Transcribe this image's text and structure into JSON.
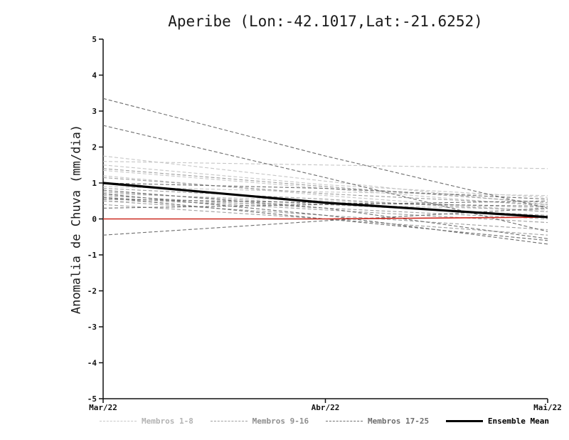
{
  "title": "Aperibe (Lon:-42.1017,Lat:-21.6252)",
  "chart_data": {
    "type": "line",
    "title": "Aperibe (Lon:-42.1017,Lat:-21.6252)",
    "xlabel": "",
    "ylabel": "Anomalia de Chuva (mm/dia)",
    "x_categories": [
      "Mar/22",
      "Abr/22",
      "Mai/22"
    ],
    "ylim": [
      -5,
      5
    ],
    "yticks": [
      -5,
      -4,
      -3,
      -2,
      -1,
      0,
      1,
      2,
      3,
      4,
      5
    ],
    "grid": false,
    "legend_position": "bottom",
    "groups": [
      {
        "name": "Membros 1-8",
        "color": "#c6c6c6",
        "style": "dashed",
        "members": [
          [
            1.75,
            1.05,
            0.4
          ],
          [
            1.6,
            1.5,
            1.4
          ],
          [
            1.5,
            0.95,
            0.6
          ],
          [
            1.35,
            0.85,
            0.35
          ],
          [
            1.2,
            0.65,
            0.2
          ],
          [
            0.9,
            0.75,
            0.65
          ],
          [
            0.7,
            0.5,
            0.3
          ],
          [
            0.5,
            0.4,
            0.25
          ]
        ]
      },
      {
        "name": "Membros 9-16",
        "color": "#9e9e9e",
        "style": "dashed",
        "members": [
          [
            1.4,
            0.9,
            0.45
          ],
          [
            1.15,
            0.7,
            0.4
          ],
          [
            0.85,
            0.55,
            0.2
          ],
          [
            0.75,
            0.4,
            0.1
          ],
          [
            0.65,
            0.3,
            0.0
          ],
          [
            0.6,
            0.25,
            -0.1
          ],
          [
            0.5,
            0.1,
            -0.3
          ],
          [
            0.4,
            0.0,
            -0.45
          ]
        ]
      },
      {
        "name": "Membros 17-25",
        "color": "#6e6e6e",
        "style": "dashed",
        "members": [
          [
            3.35,
            1.75,
            0.3
          ],
          [
            2.6,
            1.15,
            -0.35
          ],
          [
            1.0,
            0.85,
            0.55
          ],
          [
            0.8,
            0.3,
            -0.55
          ],
          [
            0.7,
            0.1,
            -0.7
          ],
          [
            0.6,
            0.0,
            -0.6
          ],
          [
            0.55,
            0.45,
            0.35
          ],
          [
            0.3,
            0.4,
            0.5
          ],
          [
            -0.45,
            -0.05,
            0.3
          ]
        ]
      }
    ],
    "ensemble_mean": {
      "name": "Ensemble Mean",
      "color": "#000000",
      "style": "solid",
      "values": [
        1.0,
        0.45,
        0.05
      ]
    },
    "reference_line": {
      "name": "zero-reference",
      "color": "#cc2a21",
      "style": "solid",
      "values": [
        0.0,
        0.0,
        0.05
      ]
    }
  },
  "legend": [
    {
      "label": "Membros 1-8",
      "color": "#c6c6c6",
      "text_color": "#b3b3b3",
      "line": "dashed",
      "weight": 1
    },
    {
      "label": "Membros 9-16",
      "color": "#9e9e9e",
      "text_color": "#8f8f8f",
      "line": "dashed",
      "weight": 1
    },
    {
      "label": "Membros 17-25",
      "color": "#6e6e6e",
      "text_color": "#6e6e6e",
      "line": "dashed",
      "weight": 1
    },
    {
      "label": "Ensemble Mean",
      "color": "#000000",
      "text_color": "#000000",
      "line": "solid",
      "weight": 3
    }
  ]
}
